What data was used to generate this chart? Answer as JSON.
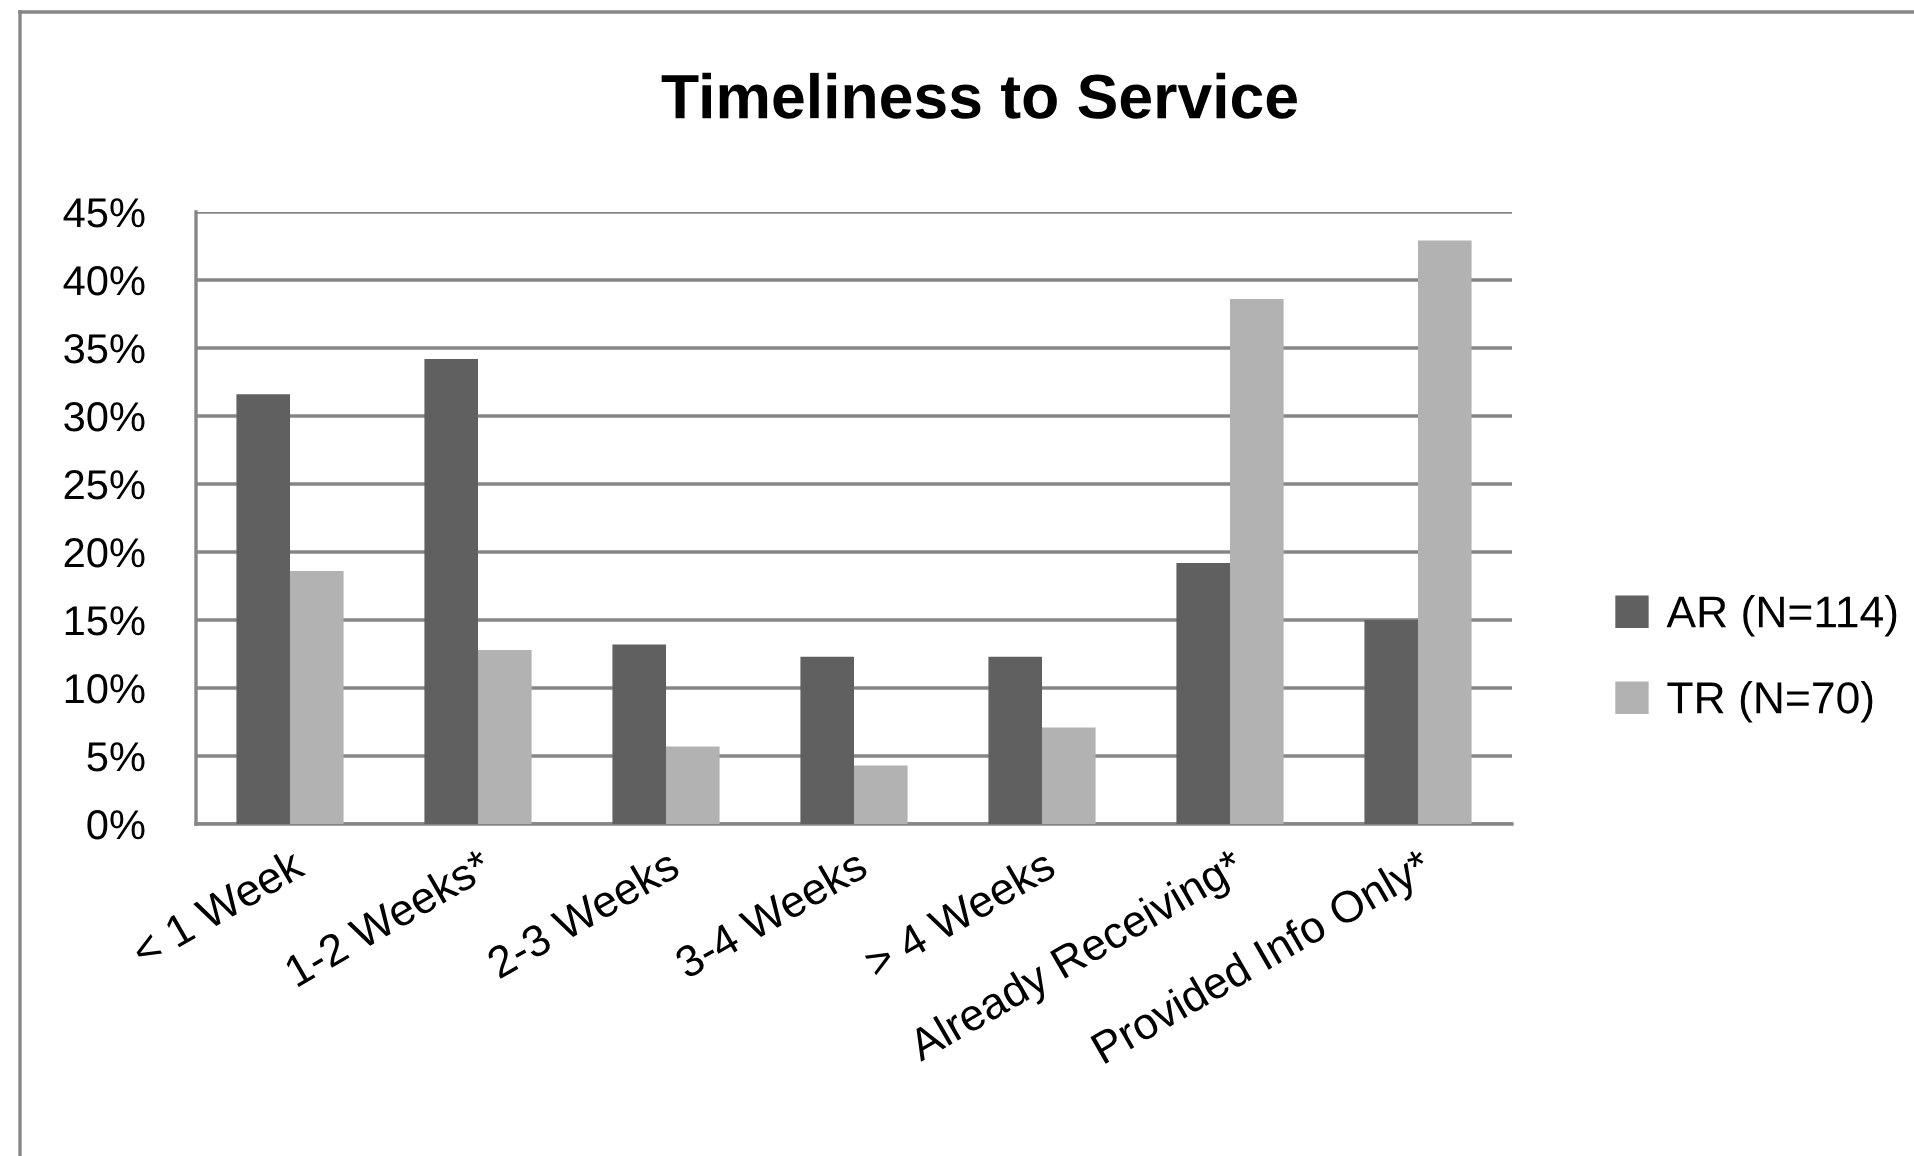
{
  "chart_data": {
    "type": "bar",
    "title": "Timeliness to Service",
    "categories": [
      "< 1 Week",
      "1-2 Weeks*",
      "2-3 Weeks",
      "3-4 Weeks",
      "> 4 Weeks",
      "Already Receiving*",
      "Provided Info Only*"
    ],
    "series": [
      {
        "name": "AR (N=114)",
        "color": "#606060",
        "values": [
          31.6,
          34.2,
          13.2,
          12.3,
          12.3,
          19.2,
          15.0
        ]
      },
      {
        "name": "TR (N=70)",
        "color": "#b2b2b2",
        "values": [
          18.6,
          12.8,
          5.7,
          4.3,
          7.1,
          38.6,
          42.9
        ]
      }
    ],
    "ylim": [
      0,
      45
    ],
    "yticks": [
      {
        "value": 0,
        "label": "0%"
      },
      {
        "value": 5,
        "label": "5%"
      },
      {
        "value": 10,
        "label": "10%"
      },
      {
        "value": 15,
        "label": "15%"
      },
      {
        "value": 20,
        "label": "20%"
      },
      {
        "value": 25,
        "label": "25%"
      },
      {
        "value": 30,
        "label": "30%"
      },
      {
        "value": 35,
        "label": "35%"
      },
      {
        "value": 40,
        "label": "40%"
      },
      {
        "value": 45,
        "label": "45%"
      }
    ],
    "grid": "y",
    "legend": "right"
  }
}
